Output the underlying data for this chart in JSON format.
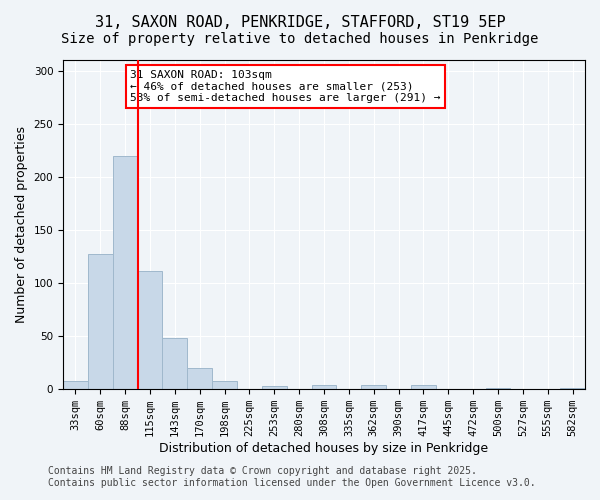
{
  "title_line1": "31, SAXON ROAD, PENKRIDGE, STAFFORD, ST19 5EP",
  "title_line2": "Size of property relative to detached houses in Penkridge",
  "xlabel": "Distribution of detached houses by size in Penkridge",
  "ylabel": "Number of detached properties",
  "bar_labels": [
    "33sqm",
    "60sqm",
    "88sqm",
    "115sqm",
    "143sqm",
    "170sqm",
    "198sqm",
    "225sqm",
    "253sqm",
    "280sqm",
    "308sqm",
    "335sqm",
    "362sqm",
    "390sqm",
    "417sqm",
    "445sqm",
    "472sqm",
    "500sqm",
    "527sqm",
    "555sqm",
    "582sqm"
  ],
  "bar_values": [
    8,
    127,
    220,
    111,
    48,
    20,
    8,
    0,
    3,
    0,
    4,
    0,
    4,
    0,
    4,
    0,
    0,
    1,
    0,
    0,
    1
  ],
  "bar_color": "#c8d8e8",
  "bar_edgecolor": "#a0b8cc",
  "vline_x": 2.5,
  "vline_color": "red",
  "annotation_text": "31 SAXON ROAD: 103sqm\n← 46% of detached houses are smaller (253)\n53% of semi-detached houses are larger (291) →",
  "annotation_box_color": "white",
  "annotation_box_edgecolor": "red",
  "ylim": [
    0,
    310
  ],
  "yticks": [
    0,
    50,
    100,
    150,
    200,
    250,
    300
  ],
  "background_color": "#f0f4f8",
  "plot_background": "#f0f4f8",
  "footer_line1": "Contains HM Land Registry data © Crown copyright and database right 2025.",
  "footer_line2": "Contains public sector information licensed under the Open Government Licence v3.0.",
  "title_fontsize": 11,
  "subtitle_fontsize": 10,
  "axis_label_fontsize": 9,
  "tick_fontsize": 7.5,
  "annotation_fontsize": 8,
  "footer_fontsize": 7
}
